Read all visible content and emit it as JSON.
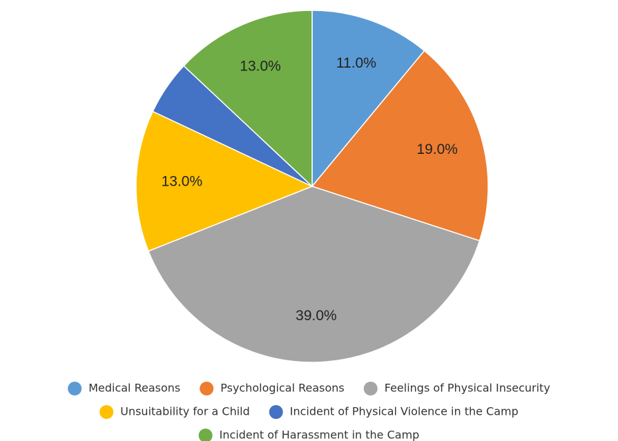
{
  "chart_data": {
    "type": "pie",
    "categories": [
      "Medical Reasons",
      "Psychological Reasons",
      "Feelings of Physical Insecurity",
      "Unsuitability for a Child",
      "Incident of Physical Violence in the Camp",
      "Incident of Harassment in the Camp"
    ],
    "values": [
      11,
      19,
      39,
      13,
      5,
      13
    ],
    "value_labels": [
      "11.0%",
      "19.0%",
      "39.0%",
      "13.0%",
      null,
      "13.0%"
    ],
    "colors": [
      "#5b9bd5",
      "#ed7d31",
      "#a5a5a5",
      "#ffc000",
      "#4472c4",
      "#70ad47"
    ],
    "legend": "bottom"
  }
}
